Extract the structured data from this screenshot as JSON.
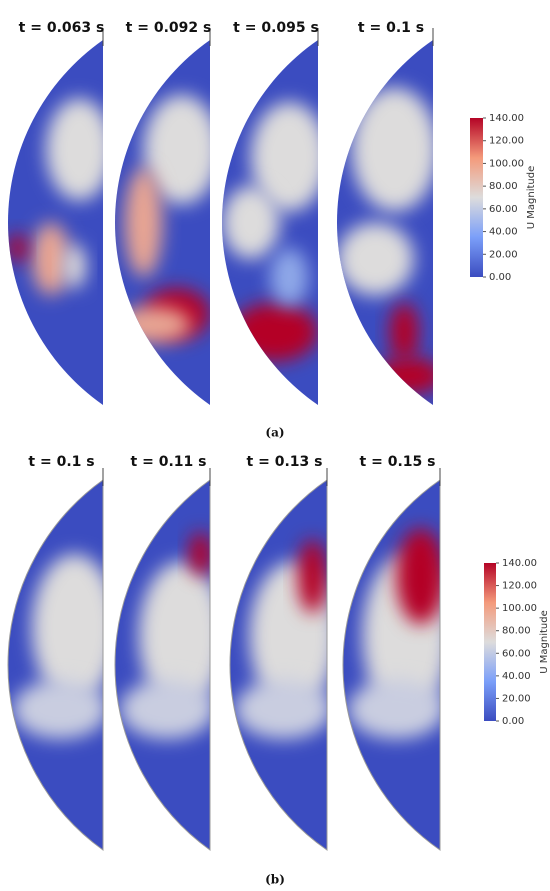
{
  "figures": [
    {
      "caption": "(a)",
      "panels": [
        {
          "label": "t = 0.063 s"
        },
        {
          "label": "t = 0.092 s"
        },
        {
          "label": "t = 0.095 s"
        },
        {
          "label": "t = 0.1 s"
        }
      ],
      "colorbar": {
        "title": "U Magnitude",
        "ticks": [
          {
            "value": 0,
            "label": "0.00"
          },
          {
            "value": 20,
            "label": "20.00"
          },
          {
            "value": 40,
            "label": "40.00"
          },
          {
            "value": 60,
            "label": "60.00"
          },
          {
            "value": 80,
            "label": "80.00"
          },
          {
            "value": 100,
            "label": "100.00"
          },
          {
            "value": 120,
            "label": "120.00"
          },
          {
            "value": 140,
            "label": "140.00"
          }
        ]
      }
    },
    {
      "caption": "(b)",
      "panels": [
        {
          "label": "t = 0.1 s"
        },
        {
          "label": "t = 0.11 s"
        },
        {
          "label": "t = 0.13 s"
        },
        {
          "label": "t = 0.15 s"
        }
      ],
      "colorbar": {
        "title": "U Magnitude",
        "ticks": [
          {
            "value": 0,
            "label": "0.00"
          },
          {
            "value": 20,
            "label": "20.00"
          },
          {
            "value": 40,
            "label": "40.00"
          },
          {
            "value": 60,
            "label": "60.00"
          },
          {
            "value": 80,
            "label": "80.00"
          },
          {
            "value": 100,
            "label": "100.00"
          },
          {
            "value": 120,
            "label": "120.00"
          },
          {
            "value": 140,
            "label": "140.00"
          }
        ]
      }
    }
  ]
}
